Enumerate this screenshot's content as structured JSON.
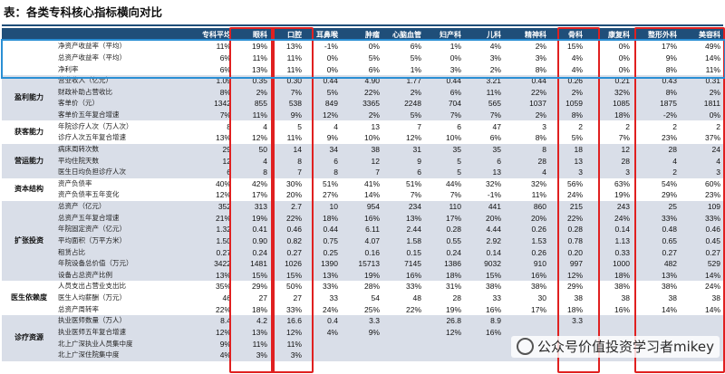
{
  "page": {
    "title": "表：各类专科核心指标横向对比",
    "watermark": "公众号价值投资学习者mikey"
  },
  "table": {
    "columns": [
      "",
      "",
      "专科平均",
      "眼科",
      "口腔",
      "耳鼻喉",
      "肿瘤",
      "心脑血管",
      "妇产科",
      "儿科",
      "精神科",
      "骨科",
      "康复科",
      "整形外科",
      "美容科"
    ],
    "groups": [
      {
        "name": "",
        "rows": 3
      },
      {
        "name": "盈利能力",
        "rows": 4
      },
      {
        "name": "获客能力",
        "rows": 2
      },
      {
        "name": "营运能力",
        "rows": 3
      },
      {
        "name": "资本结构",
        "rows": 2
      },
      {
        "name": "扩张投资",
        "rows": 7
      },
      {
        "name": "医生依赖度",
        "rows": 3
      },
      {
        "name": "诊疗资源",
        "rows": 4
      }
    ],
    "rows": [
      {
        "ind": "净资产收益率（平均）",
        "vals": [
          "11%",
          "19%",
          "13%",
          "-1%",
          "0%",
          "6%",
          "1%",
          "4%",
          "2%",
          "15%",
          "0%",
          "17%",
          "49%"
        ]
      },
      {
        "ind": "总资产收益率（平均）",
        "vals": [
          "6%",
          "11%",
          "11%",
          "0%",
          "5%",
          "5%",
          "0%",
          "3%",
          "3%",
          "4%",
          "0%",
          "9%",
          "14%"
        ]
      },
      {
        "ind": "净利率",
        "vals": [
          "6%",
          "13%",
          "11%",
          "0%",
          "6%",
          "1%",
          "3%",
          "2%",
          "8%",
          "4%",
          "0%",
          "8%",
          "11%"
        ]
      },
      {
        "ind": "营业收入（亿元）",
        "vals": [
          "1.09",
          "0.35",
          "0.30",
          "0.44",
          "4.90",
          "1.77",
          "0.44",
          "3.21",
          "0.44",
          "0.26",
          "0.21",
          "0.43",
          "0.31"
        ]
      },
      {
        "ind": "财政补助占营收比",
        "vals": [
          "8%",
          "2%",
          "7%",
          "5%",
          "22%",
          "2%",
          "6%",
          "11%",
          "22%",
          "2%",
          "32%",
          "8%",
          "2%"
        ]
      },
      {
        "ind": "客单价（元）",
        "vals": [
          "1342",
          "855",
          "538",
          "849",
          "3365",
          "2248",
          "704",
          "565",
          "1037",
          "1059",
          "1085",
          "1875",
          "1811"
        ]
      },
      {
        "ind": "客单价五年复合增速",
        "vals": [
          "7%",
          "11%",
          "9%",
          "12%",
          "2%",
          "5%",
          "7%",
          "7%",
          "2%",
          "8%",
          "18%",
          "-2%",
          "0%"
        ]
      },
      {
        "ind": "年院诊疗人次（万人次）",
        "vals": [
          "8",
          "4",
          "5",
          "4",
          "13",
          "7",
          "6",
          "47",
          "3",
          "2",
          "2",
          "2",
          "2"
        ]
      },
      {
        "ind": "诊疗人次五年复合增速",
        "vals": [
          "13%",
          "12%",
          "11%",
          "9%",
          "10%",
          "12%",
          "10%",
          "6%",
          "8%",
          "5%",
          "7%",
          "23%",
          "37%"
        ]
      },
      {
        "ind": "病床周转次数",
        "vals": [
          "29",
          "50",
          "14",
          "34",
          "38",
          "31",
          "35",
          "35",
          "8",
          "18",
          "12",
          "28",
          "24"
        ]
      },
      {
        "ind": "平均住院天数",
        "vals": [
          "12",
          "4",
          "8",
          "6",
          "12",
          "9",
          "5",
          "6",
          "28",
          "13",
          "28",
          "4",
          "4"
        ]
      },
      {
        "ind": "医生日均负担诊疗人次",
        "vals": [
          "6",
          "8",
          "7",
          "8",
          "7",
          "6",
          "5",
          "13",
          "4",
          "3",
          "3",
          "2",
          "3"
        ]
      },
      {
        "ind": "资产负债率",
        "vals": [
          "40%",
          "42%",
          "30%",
          "51%",
          "41%",
          "51%",
          "44%",
          "32%",
          "32%",
          "56%",
          "63%",
          "54%",
          "60%"
        ]
      },
      {
        "ind": "资产负债率五年变化",
        "vals": [
          "12%",
          "17%",
          "20%",
          "27%",
          "14%",
          "7%",
          "7%",
          "-1%",
          "11%",
          "24%",
          "19%",
          "29%",
          "23%"
        ]
      },
      {
        "ind": "总资产（亿元）",
        "vals": [
          "352",
          "313",
          "2.7",
          "10",
          "954",
          "234",
          "110",
          "441",
          "860",
          "215",
          "243",
          "25",
          "109"
        ]
      },
      {
        "ind": "总资产五年复合增速",
        "vals": [
          "21%",
          "19%",
          "22%",
          "18%",
          "16%",
          "13%",
          "17%",
          "20%",
          "20%",
          "22%",
          "24%",
          "33%",
          "33%"
        ]
      },
      {
        "ind": "年院固定资产（亿元）",
        "vals": [
          "1.32",
          "0.41",
          "0.46",
          "0.44",
          "6.11",
          "2.44",
          "0.28",
          "4.44",
          "0.26",
          "0.28",
          "0.14",
          "0.48",
          "0.46"
        ]
      },
      {
        "ind": "平均面积（万平方米）",
        "vals": [
          "1.50",
          "0.90",
          "0.82",
          "0.75",
          "4.07",
          "1.58",
          "0.55",
          "2.92",
          "1.53",
          "0.78",
          "1.13",
          "0.65",
          "0.45"
        ]
      },
      {
        "ind": "租赁占比",
        "vals": [
          "0.27",
          "0.24",
          "0.27",
          "0.25",
          "0.16",
          "0.15",
          "0.24",
          "0.14",
          "0.26",
          "0.20",
          "0.33",
          "0.27",
          "0.27"
        ]
      },
      {
        "ind": "年院设备总价值（万元）",
        "vals": [
          "3422",
          "1481",
          "1026",
          "1390",
          "15713",
          "7145",
          "1386",
          "9032",
          "910",
          "997",
          "1000",
          "482",
          "529"
        ]
      },
      {
        "ind": "设备占总资产比例",
        "vals": [
          "13%",
          "15%",
          "15%",
          "13%",
          "19%",
          "16%",
          "18%",
          "15%",
          "16%",
          "12%",
          "18%",
          "13%",
          "14%"
        ]
      },
      {
        "ind": "人员支出占营业支出比",
        "vals": [
          "35%",
          "29%",
          "50%",
          "33%",
          "28%",
          "33%",
          "31%",
          "38%",
          "38%",
          "29%",
          "38%",
          "38%",
          "24%"
        ]
      },
      {
        "ind": "医生人均薪酬（万元）",
        "vals": [
          "46",
          "27",
          "27",
          "33",
          "54",
          "48",
          "28",
          "33",
          "30",
          "38",
          "38",
          "38",
          "38"
        ]
      },
      {
        "ind": "总资产周转率",
        "vals": [
          "22%",
          "18%",
          "33%",
          "24%",
          "25%",
          "22%",
          "19%",
          "16%",
          "17%",
          "18%",
          "16%",
          "14%",
          "14%"
        ]
      },
      {
        "ind": "执业医师数量（万人）",
        "vals": [
          "8.4",
          "4.2",
          "16.6",
          "0.4",
          "3.3",
          "",
          "26.8",
          "8.9",
          "",
          "3.3",
          "",
          "",
          ""
        ]
      },
      {
        "ind": "执业医师五年复合增速",
        "vals": [
          "12%",
          "13%",
          "12%",
          "4%",
          "9%",
          "",
          "12%",
          "16%",
          "",
          "",
          "",
          "",
          ""
        ]
      },
      {
        "ind": "北上广深执业人员集中度",
        "vals": [
          "9%",
          "11%",
          "11%",
          "",
          "",
          "",
          "",
          "",
          "",
          "",
          "",
          "",
          ""
        ]
      },
      {
        "ind": "北上广深住院集中度",
        "vals": [
          "4%",
          "3%",
          "3%",
          "",
          "",
          "",
          "",
          "",
          "",
          "",
          "",
          "",
          ""
        ]
      }
    ]
  }
}
